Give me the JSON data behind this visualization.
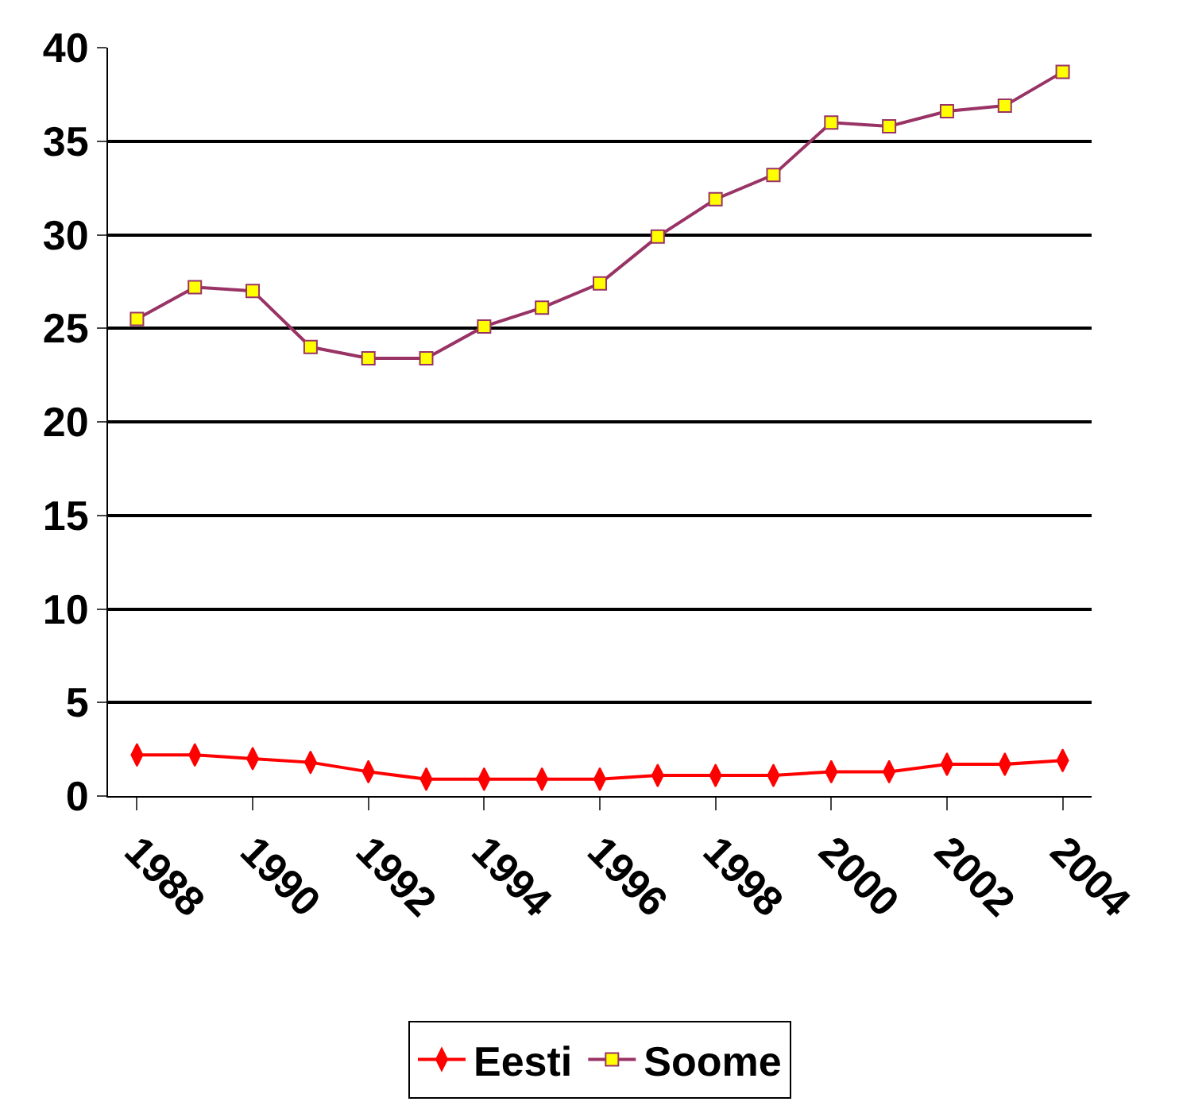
{
  "chart_data": {
    "type": "line",
    "categories": [
      "1988",
      null,
      "1990",
      null,
      "1992",
      null,
      "1994",
      null,
      "1996",
      null,
      "1998",
      null,
      "2000",
      null,
      "2002",
      null,
      "2004"
    ],
    "series": [
      {
        "name": "Eesti",
        "color": "#ff0000",
        "marker": "diamond",
        "values": [
          2.2,
          2.2,
          2.0,
          1.8,
          1.3,
          0.9,
          0.9,
          0.9,
          0.9,
          1.1,
          1.1,
          1.1,
          1.3,
          1.3,
          1.7,
          1.7,
          1.9
        ]
      },
      {
        "name": "Soome",
        "color": "#993366",
        "marker": "square",
        "values": [
          25.5,
          27.2,
          27.0,
          24.0,
          23.4,
          23.4,
          25.1,
          26.1,
          27.4,
          29.9,
          31.9,
          33.2,
          36.0,
          35.8,
          36.6,
          36.9,
          38.7
        ]
      }
    ],
    "ylim": [
      0,
      40
    ],
    "yticks": [
      0,
      5,
      10,
      15,
      20,
      25,
      30,
      35,
      40
    ],
    "grid": "y",
    "legend": "bottom"
  }
}
